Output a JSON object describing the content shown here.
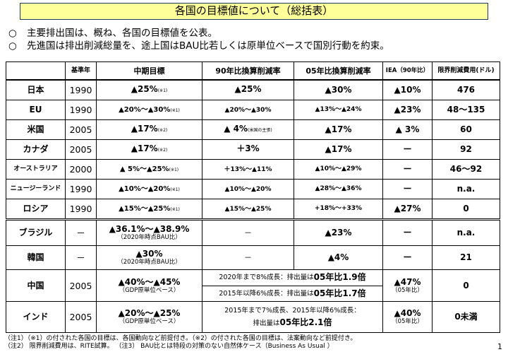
{
  "title": "各国の目標値について（総括表）",
  "bullets": [
    "主要排出国は、概ね、各国の目標値を公表。",
    "先進国は排出削減総量を、途上国はBAU比若しくは原単位ベースで国別行動を約束。"
  ],
  "bullet_mark": "○",
  "headers": [
    "",
    "基準年",
    "中期目標",
    "90年比換算削減率",
    "05年比換算削減率",
    "IEA（90年比）",
    "限界削減費用(ドル)"
  ],
  "developed": [
    {
      "country": "日本",
      "base": "1990",
      "target": "▲25%",
      "target_note": "(※1)",
      "r90": "▲25%",
      "r90_note": "",
      "r05": "▲30%",
      "iea": "▲10%",
      "cost": "476"
    },
    {
      "country": "EU",
      "base": "1990",
      "target": "▲20%～▲30%",
      "target_note": "(※1)",
      "r90": "▲20%～▲30%",
      "r90_note": "",
      "r05": "▲13%～▲24%",
      "iea": "▲23%",
      "cost": "48～135"
    },
    {
      "country": "米国",
      "base": "2005",
      "target": "▲17%",
      "target_note": "(※2)",
      "r90": "▲ 4%",
      "r90_note": "(米国の主張)",
      "r05": "▲17%",
      "iea": "▲ 3%",
      "cost": "60"
    },
    {
      "country": "カナダ",
      "base": "2005",
      "target": "▲17%",
      "target_note": "(※2)",
      "r90": "＋3%",
      "r90_note": "",
      "r05": "▲17%",
      "iea": "ー",
      "cost": "92"
    },
    {
      "country": "オーストラリア",
      "base": "2000",
      "target": "▲ 5%～▲25%",
      "target_note": "(※1)",
      "r90": "＋13%～▲11%",
      "r90_note": "",
      "r05": "▲10%～▲29%",
      "iea": "ー",
      "cost": "46～92"
    },
    {
      "country": "ニュージーランド",
      "base": "1990",
      "target": "▲10%～▲20%",
      "target_note": "(※1)",
      "r90": "▲10%～▲20%",
      "r90_note": "",
      "r05": "▲28%～▲36%",
      "iea": "ー",
      "cost": "n.a."
    },
    {
      "country": "ロシア",
      "base": "1990",
      "target": "▲15%～▲25%",
      "target_note": "(※1)",
      "r90": "▲15%～▲25%",
      "r90_note": "",
      "r05": "+18%～+33%",
      "iea": "▲27%",
      "cost": "0"
    }
  ],
  "developing": {
    "brazil": {
      "country": "ブラジル",
      "base": "－",
      "target": "▲36.1%～▲38.9%",
      "target_sub": "（2020年時点BAU比）",
      "r90": "－",
      "r05": "▲23%",
      "iea": "ー",
      "cost": "n.a."
    },
    "korea": {
      "country": "韓国",
      "base": "－",
      "target": "▲30%",
      "target_sub": "（2020年時点BAU比）",
      "r90": "－",
      "r05": "▲4%",
      "iea": "ー",
      "cost": "21"
    },
    "china": {
      "country": "中国",
      "base": "2005",
      "target": "▲40%～▲45%",
      "target_sub": "（GDP原単位ベース）",
      "line1_pre": "2020年まで8%成長：排出量は",
      "line1_big": "05年比1.9倍",
      "line2_pre": "2015年以降6%成長：排出量は",
      "line2_big": "05年比1.7倍",
      "iea": "▲47%",
      "iea_sub": "（05年比）",
      "cost": "0"
    },
    "india": {
      "country": "インド",
      "base": "2005",
      "target": "▲20%～▲25%",
      "target_sub": "（GDP原単位ベース）",
      "line1": "2015年まで7%成長、2015年以降6%成長：",
      "line2_pre": "排出量は",
      "line2_big": "05年比2.1倍",
      "iea": "▲40%",
      "iea_sub": "（05年比）",
      "cost": "0未満"
    }
  },
  "footnotes": [
    "（注1）（※1）の付された各国の目標は、各国動向など前提付き。（※2）の付された各国の目標は、法案動向など前提付き。",
    "（注2）  限界削減費用は、RITE試算。       （注3）  BAU比とは特段の対策のない自然体ケース（Business As Usual ）"
  ],
  "page_number": "1"
}
